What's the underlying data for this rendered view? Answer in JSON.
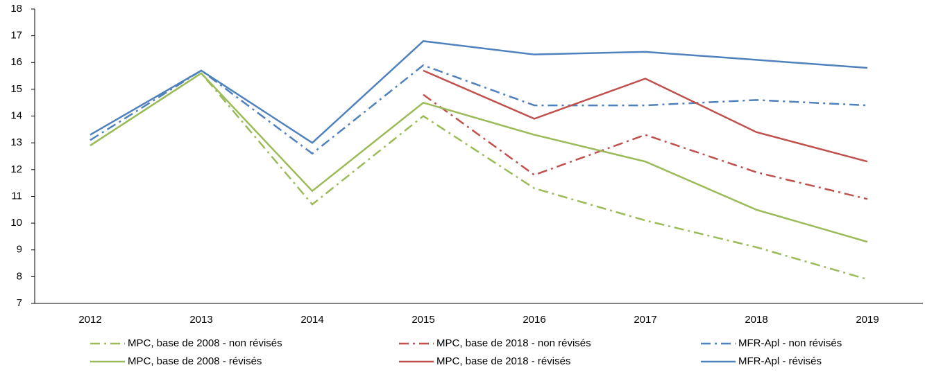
{
  "chart_data": {
    "type": "line",
    "categories": [
      "2012",
      "2013",
      "2014",
      "2015",
      "2016",
      "2017",
      "2018",
      "2019"
    ],
    "series": [
      {
        "name": "MPC, base de 2008 - non révisés",
        "color": "#9bbb59",
        "line_style": "dash-dot",
        "values": [
          12.9,
          15.6,
          10.7,
          14.0,
          11.3,
          10.1,
          9.1,
          7.9
        ]
      },
      {
        "name": "MPC, base de 2018 - non révisés",
        "color": "#c0504d",
        "line_style": "dash-dot",
        "values": [
          null,
          null,
          null,
          14.8,
          11.8,
          13.3,
          11.9,
          10.9
        ]
      },
      {
        "name": "MFR-Apl - non révisés",
        "color": "#4f81bd",
        "line_style": "dash-dot",
        "values": [
          13.1,
          15.7,
          12.6,
          15.9,
          14.4,
          14.4,
          14.6,
          14.4
        ]
      },
      {
        "name": "MPC, base de 2008 - révisés",
        "color": "#9bbb59",
        "line_style": "solid",
        "values": [
          12.9,
          15.6,
          11.2,
          14.5,
          13.3,
          12.3,
          10.5,
          9.3
        ]
      },
      {
        "name": "MPC, base de 2018 - révisés",
        "color": "#c0504d",
        "line_style": "solid",
        "values": [
          null,
          null,
          null,
          15.7,
          13.9,
          15.4,
          13.4,
          12.3
        ]
      },
      {
        "name": "MFR-Apl - révisés",
        "color": "#4f81bd",
        "line_style": "solid",
        "values": [
          13.3,
          15.7,
          13.0,
          16.8,
          16.3,
          16.4,
          16.1,
          15.8
        ]
      }
    ],
    "ylim": [
      7,
      18
    ],
    "yticks": [
      7,
      8,
      9,
      10,
      11,
      12,
      13,
      14,
      15,
      16,
      17,
      18
    ],
    "grid": false
  }
}
